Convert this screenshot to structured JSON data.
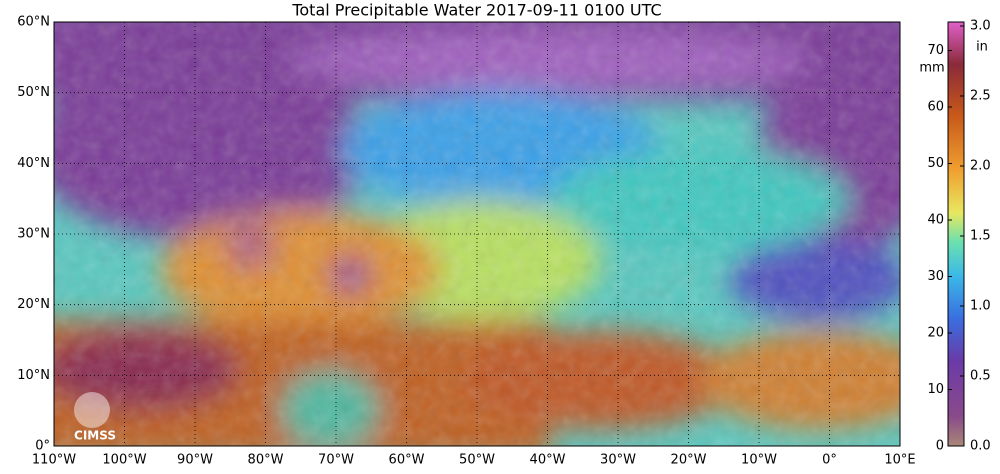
{
  "title": "Total Precipitable Water  2017-09-11 0100 UTC",
  "map": {
    "lat_labels": [
      "60°N",
      "50°N",
      "40°N",
      "30°N",
      "20°N",
      "10°N",
      "0°"
    ],
    "lon_labels": [
      "110°W",
      "100°W",
      "90°W",
      "80°W",
      "70°W",
      "60°W",
      "50°W",
      "40°W",
      "30°W",
      "20°W",
      "10°W",
      "0°",
      "10°E"
    ],
    "logo": "CIMSS"
  },
  "colorbar": {
    "mm_unit": "mm",
    "mm_labels": [
      "70",
      "60",
      "50",
      "40",
      "30",
      "20",
      "10",
      "0"
    ],
    "in_unit": "in",
    "in_labels": [
      "3.0",
      "2.5",
      "2.0",
      "1.5",
      "1.0",
      "0.5",
      "0.0"
    ]
  }
}
